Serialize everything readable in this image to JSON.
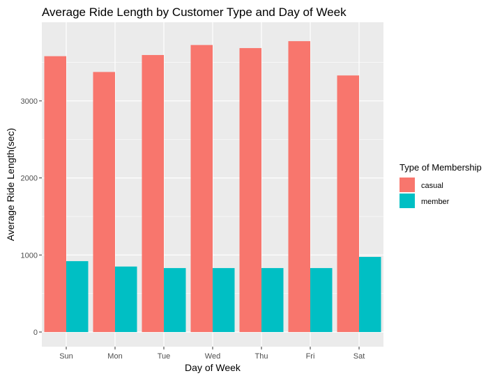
{
  "chart_data": {
    "type": "bar",
    "title": "Average Ride Length by Customer Type and Day of Week",
    "xlabel": "Day of Week",
    "ylabel": "Average Ride Length(sec)",
    "categories": [
      "Sun",
      "Mon",
      "Tue",
      "Wed",
      "Thu",
      "Fri",
      "Sat"
    ],
    "series": [
      {
        "name": "casual",
        "color": "#f8766d",
        "values": [
          3580,
          3375,
          3595,
          3725,
          3685,
          3775,
          3330
        ]
      },
      {
        "name": "member",
        "color": "#00bfc4",
        "values": [
          920,
          850,
          830,
          830,
          830,
          830,
          975
        ]
      }
    ],
    "ylim": [
      -190,
      4020
    ],
    "yticks": [
      0,
      1000,
      2000,
      3000
    ],
    "ytick_labels": [
      "0",
      "1000",
      "2000",
      "3000"
    ],
    "grid": true,
    "legend": {
      "title": "Type of Membership",
      "position": "right"
    }
  }
}
